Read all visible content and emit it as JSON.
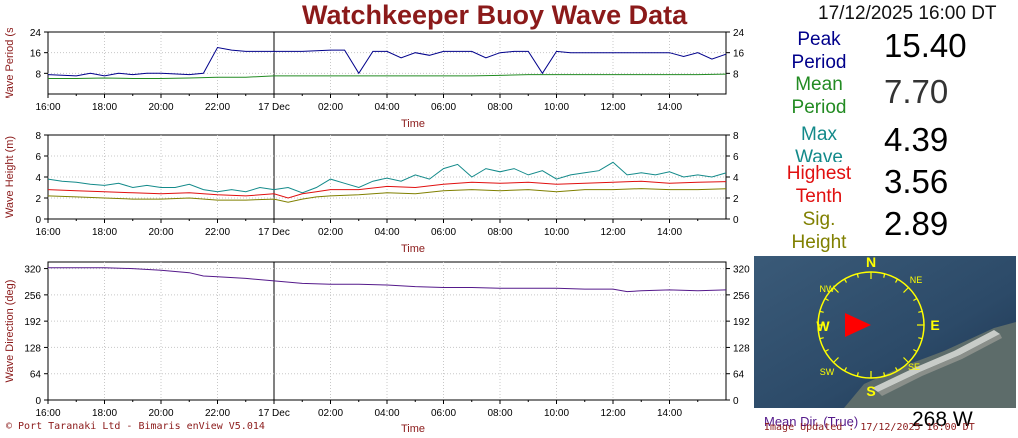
{
  "header": {
    "title": "Watchkeeper Buoy Wave Data",
    "datetime": "17/12/2025 16:00 DT"
  },
  "readouts": {
    "peak_period": {
      "label1": "Peak",
      "label2": "Period",
      "value": "15.40",
      "color": "#00008b"
    },
    "mean_period": {
      "label1": "Mean",
      "label2": "Period",
      "value": "7.70",
      "color": "#228b22"
    },
    "max_wave": {
      "label1": "Max",
      "label2": "Wave",
      "value": "4.39",
      "color": "#138a8a"
    },
    "highest_tenth": {
      "label1": "Highest",
      "label2": "Tenth",
      "value": "3.56",
      "color": "#e01010"
    },
    "sig_height": {
      "label1": "Sig.",
      "label2": "Height",
      "value": "2.89",
      "color": "#808000"
    }
  },
  "compass": {
    "labels": {
      "n": "N",
      "ne": "NE",
      "e": "E",
      "se": "SE",
      "s": "S",
      "sw": "SW",
      "w": "W",
      "nw": "NW"
    },
    "direction_deg": 268,
    "ring_color": "#ffff00",
    "arrow_color": "#ff0000"
  },
  "footer": {
    "copyright": "© Port Taranaki Ltd - Bimaris enView V5.014",
    "updated": "Image Updated : 17/12/2025 16:00 DT",
    "mean_dir_label": "Mean Dir. (True)",
    "mean_dir_value": "268 W"
  },
  "chart_data": [
    {
      "type": "line",
      "ylabel": "Wave Period (s)",
      "xlabel": "Time",
      "ylim": [
        0,
        24
      ],
      "yticks": [
        "24",
        "16",
        "8"
      ],
      "xticks": [
        "16:00",
        "18:00",
        "20:00",
        "22:00",
        "17 Dec",
        "02:00",
        "04:00",
        "06:00",
        "08:00",
        "10:00",
        "12:00",
        "14:00"
      ],
      "x_hours": [
        0,
        2,
        4,
        6,
        8,
        10,
        12,
        14,
        16,
        18,
        20,
        22,
        24
      ],
      "grid": true,
      "series": [
        {
          "color": "#00008b",
          "x": [
            0,
            1,
            1.5,
            2,
            2.5,
            3,
            3.5,
            4,
            5,
            5.5,
            6,
            6.5,
            7,
            7.5,
            8,
            9,
            10,
            10.5,
            11,
            11.5,
            12,
            12.5,
            13,
            13.5,
            14,
            15,
            15.5,
            16,
            16.5,
            17,
            17.5,
            18,
            18.5,
            19,
            20,
            21,
            22,
            22.5,
            23,
            23.5,
            24
          ],
          "y": [
            7.5,
            7,
            8,
            7,
            8,
            7.5,
            8,
            8,
            7.5,
            8,
            18,
            17,
            16.5,
            16.5,
            16.5,
            16.5,
            17,
            17,
            8,
            16.5,
            16.5,
            14,
            16,
            15,
            16.5,
            16.5,
            14,
            16,
            16.5,
            16.5,
            8,
            16.5,
            16,
            16,
            16,
            16,
            16,
            14.5,
            16,
            13.5,
            15.4
          ]
        },
        {
          "color": "#228b22",
          "x": [
            0,
            1,
            2,
            3,
            4,
            5,
            6,
            7,
            8,
            9,
            10,
            11,
            12,
            13,
            14,
            15,
            16,
            17,
            18,
            19,
            20,
            21,
            22,
            23,
            24
          ],
          "y": [
            6,
            6,
            6.2,
            6,
            6,
            6.2,
            6.5,
            6.5,
            7,
            7,
            7,
            7,
            7,
            7,
            7,
            7,
            7.2,
            7.5,
            7.5,
            7.5,
            7.5,
            7.5,
            7.5,
            7.5,
            7.7
          ]
        }
      ]
    },
    {
      "type": "line",
      "ylabel": "Wave Height (m)",
      "xlabel": "Time",
      "ylim": [
        0,
        8
      ],
      "yticks": [
        "8",
        "6",
        "4",
        "2",
        "0"
      ],
      "xticks": [
        "16:00",
        "18:00",
        "20:00",
        "22:00",
        "17 Dec",
        "02:00",
        "04:00",
        "06:00",
        "08:00",
        "10:00",
        "12:00",
        "14:00"
      ],
      "x_hours": [
        0,
        2,
        4,
        6,
        8,
        10,
        12,
        14,
        16,
        18,
        20,
        22,
        24
      ],
      "grid": true,
      "series": [
        {
          "color": "#138a8a",
          "x": [
            0,
            0.5,
            1,
            1.5,
            2,
            2.5,
            3,
            3.5,
            4,
            4.5,
            5,
            5.5,
            6,
            6.5,
            7,
            7.5,
            8,
            8.5,
            9,
            9.5,
            10,
            10.5,
            11,
            11.5,
            12,
            12.5,
            13,
            13.5,
            14,
            14.5,
            15,
            15.5,
            16,
            16.5,
            17,
            17.5,
            18,
            18.5,
            19,
            19.5,
            20,
            20.5,
            21,
            21.5,
            22,
            22.5,
            23,
            23.5,
            24
          ],
          "y": [
            3.8,
            3.6,
            3.5,
            3.3,
            3.2,
            3.4,
            3,
            3.2,
            3,
            3,
            3.3,
            2.8,
            2.6,
            2.8,
            2.6,
            3,
            2.8,
            3,
            2.5,
            3,
            3.8,
            3.4,
            3,
            3.6,
            3.9,
            3.6,
            4.2,
            3.8,
            4.8,
            5.2,
            4,
            4.8,
            4.5,
            4.8,
            4.2,
            4.6,
            3.8,
            4.2,
            4.4,
            4.6,
            5.4,
            4.2,
            4.4,
            4.2,
            4.5,
            4,
            4.2,
            4,
            4.39
          ]
        },
        {
          "color": "#e01010",
          "x": [
            0,
            1,
            2,
            3,
            4,
            5,
            6,
            7,
            8,
            8.5,
            9,
            9.5,
            10,
            11,
            12,
            13,
            14,
            15,
            16,
            17,
            18,
            19,
            20,
            21,
            22,
            23,
            24
          ],
          "y": [
            2.8,
            2.7,
            2.6,
            2.5,
            2.4,
            2.5,
            2.3,
            2.2,
            2.4,
            2,
            2.4,
            2.6,
            2.8,
            2.8,
            3.1,
            3,
            3.3,
            3.5,
            3.4,
            3.5,
            3.3,
            3.4,
            3.5,
            3.6,
            3.4,
            3.5,
            3.56
          ]
        },
        {
          "color": "#808000",
          "x": [
            0,
            1,
            2,
            3,
            4,
            5,
            6,
            7,
            8,
            8.5,
            9,
            9.5,
            10,
            11,
            12,
            13,
            14,
            15,
            16,
            17,
            18,
            19,
            20,
            21,
            22,
            23,
            24
          ],
          "y": [
            2.2,
            2.1,
            2,
            1.9,
            1.9,
            2,
            1.8,
            1.8,
            1.9,
            1.6,
            1.9,
            2.1,
            2.2,
            2.3,
            2.5,
            2.4,
            2.7,
            2.8,
            2.7,
            2.8,
            2.6,
            2.8,
            2.8,
            2.9,
            2.8,
            2.8,
            2.89
          ]
        }
      ]
    },
    {
      "type": "line",
      "ylabel": "Wave Direction (deg)",
      "xlabel": "Time",
      "ylim": [
        0,
        336
      ],
      "yticks": [
        "320",
        "256",
        "192",
        "128",
        "64",
        "0"
      ],
      "ytick_values": [
        320,
        256,
        192,
        128,
        64,
        0
      ],
      "xticks": [
        "16:00",
        "18:00",
        "20:00",
        "22:00",
        "17 Dec",
        "02:00",
        "04:00",
        "06:00",
        "08:00",
        "10:00",
        "12:00",
        "14:00"
      ],
      "x_hours": [
        0,
        2,
        4,
        6,
        8,
        10,
        12,
        14,
        16,
        18,
        20,
        22,
        24
      ],
      "grid": true,
      "series": [
        {
          "color": "#551a8b",
          "x": [
            0,
            1,
            2,
            3,
            4,
            5,
            5.5,
            6,
            7,
            8,
            9,
            10,
            11,
            12,
            13,
            14,
            15,
            16,
            17,
            18,
            19,
            20,
            20.5,
            21,
            22,
            23,
            24
          ],
          "y": [
            322,
            322,
            322,
            320,
            316,
            310,
            302,
            300,
            296,
            290,
            284,
            282,
            282,
            280,
            276,
            274,
            274,
            272,
            272,
            272,
            270,
            270,
            264,
            266,
            268,
            266,
            268
          ]
        }
      ]
    }
  ]
}
